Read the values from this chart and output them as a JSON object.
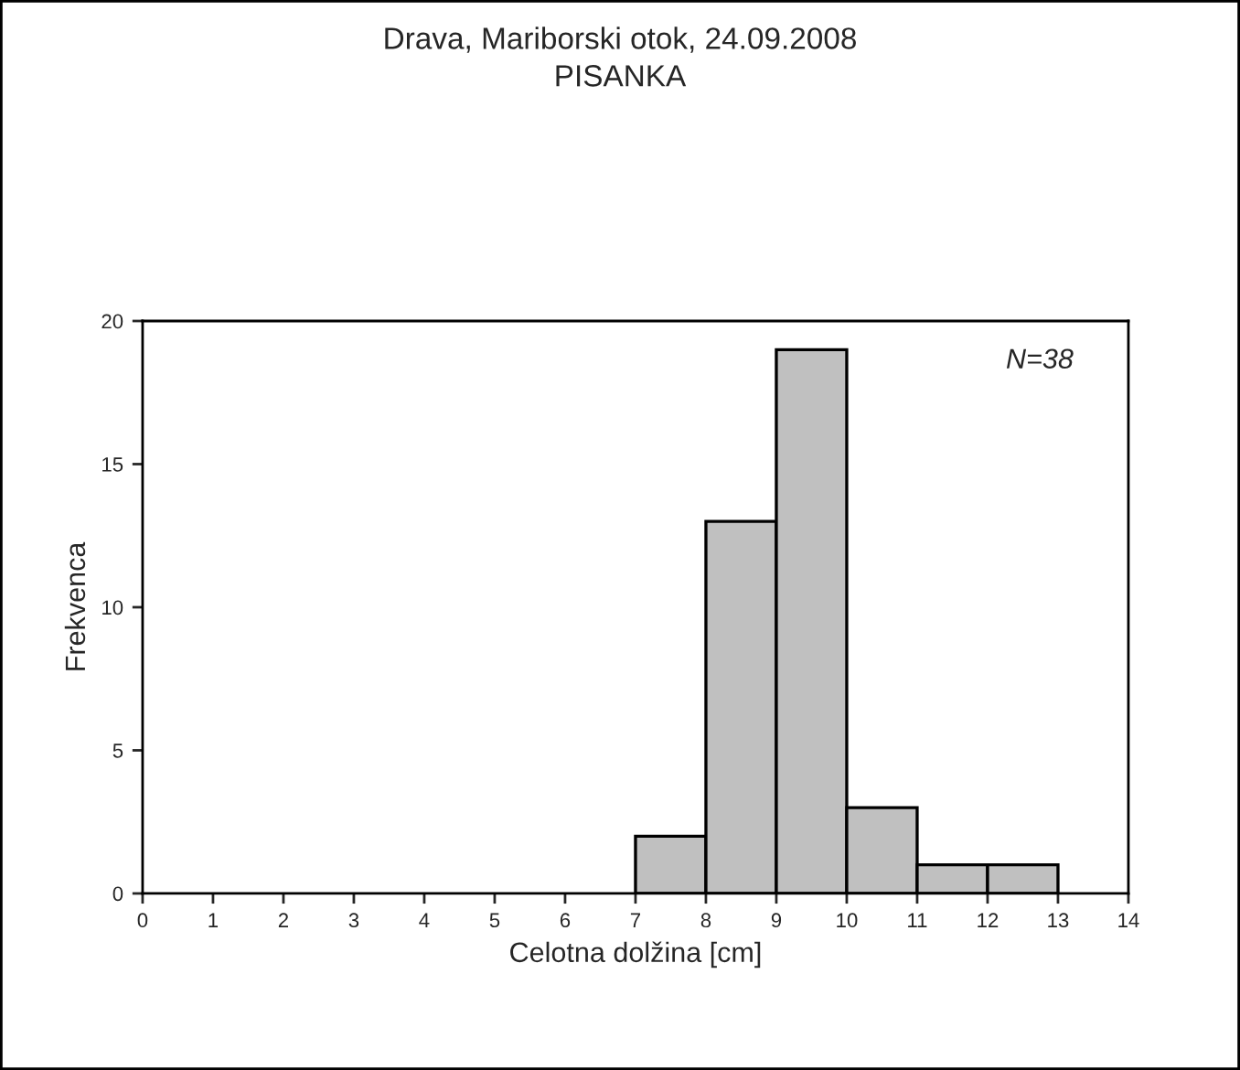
{
  "chart_data": {
    "type": "histogram",
    "title": "Drava, Mariborski otok, 24.09.2008",
    "subtitle": "PISANKA",
    "xlabel": "Celotna dolžina [cm]",
    "ylabel": "Frekvenca",
    "bins": [
      0,
      1,
      2,
      3,
      4,
      5,
      6,
      7,
      8,
      9,
      10,
      11,
      12,
      13,
      14
    ],
    "values": [
      0,
      0,
      0,
      0,
      0,
      0,
      0,
      2,
      13,
      19,
      3,
      1,
      1,
      0
    ],
    "color": "#c0c0c0",
    "xlim": [
      0,
      14
    ],
    "xticks": [
      0,
      1,
      2,
      3,
      4,
      5,
      6,
      7,
      8,
      9,
      10,
      11,
      12,
      13,
      14
    ],
    "ylim": [
      0,
      20
    ],
    "yticks": [
      0,
      5,
      10,
      15,
      20
    ],
    "annotations": [
      "N=38"
    ],
    "grid": false
  }
}
